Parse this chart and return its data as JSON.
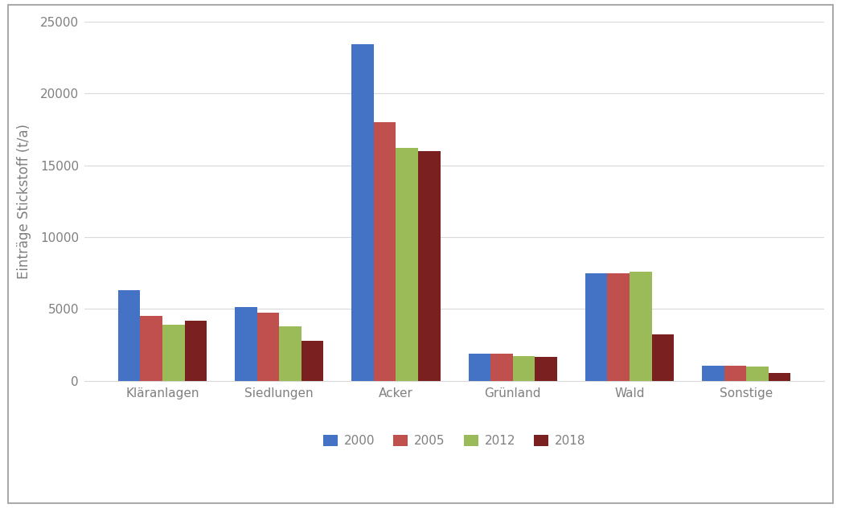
{
  "categories": [
    "Kläranlagen",
    "Siedlungen",
    "Acker",
    "Grünland",
    "Wald",
    "Sonstige"
  ],
  "years": [
    "2000",
    "2005",
    "2012",
    "2018"
  ],
  "values": {
    "2000": [
      6300,
      5100,
      23400,
      1900,
      7450,
      1050
    ],
    "2005": [
      4500,
      4750,
      18000,
      1900,
      7450,
      1050
    ],
    "2012": [
      3900,
      3800,
      16200,
      1700,
      7600,
      1000
    ],
    "2018": [
      4200,
      2750,
      16000,
      1650,
      3200,
      550
    ]
  },
  "colors": {
    "2000": "#4472C4",
    "2005": "#C0504D",
    "2012": "#9BBB59",
    "2018": "#7B2020"
  },
  "ylabel": "Einträge Stickstoff (t/a)",
  "ylim": [
    0,
    25000
  ],
  "yticks": [
    0,
    5000,
    10000,
    15000,
    20000,
    25000
  ],
  "background_color": "#FFFFFF",
  "grid_color": "#D9D9D9",
  "tick_color": "#808080",
  "bar_width": 0.19,
  "legend_ncol": 4,
  "outer_border_color": "#AAAAAA",
  "figsize": [
    10.46,
    6.32
  ]
}
